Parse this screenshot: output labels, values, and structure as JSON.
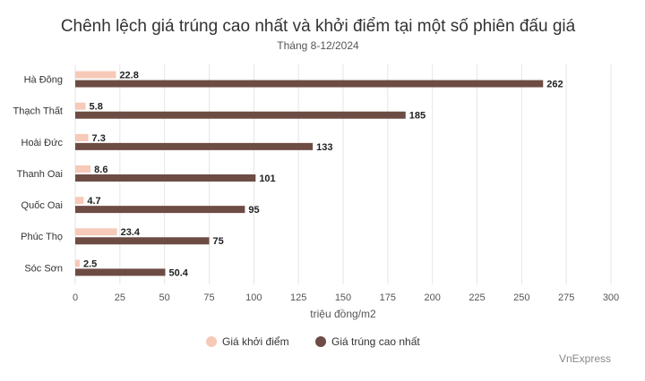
{
  "chart_data": {
    "type": "hbar",
    "title": "Chênh lệch giá trúng cao nhất và khởi điểm tại một số phiên đấu giá",
    "subtitle": "Tháng 8-12/2024",
    "x_label": "triệu đồng/m2",
    "source": "VnExpress",
    "categories": [
      "Hà Đông",
      "Thạch Thất",
      "Hoài Đức",
      "Thanh Oai",
      "Quốc Oai",
      "Phúc Thọ",
      "Sóc Sơn"
    ],
    "series": [
      {
        "name": "Giá khởi điểm",
        "color": "#f6c9b9",
        "values": [
          22.8,
          5.8,
          7.3,
          8.6,
          4.7,
          23.4,
          2.5
        ]
      },
      {
        "name": "Giá trúng cao nhất",
        "color": "#6d4c43",
        "values": [
          262,
          185,
          133,
          101,
          95,
          75,
          50.4
        ]
      }
    ],
    "xlim": [
      0,
      300
    ],
    "xticks": [
      0,
      25,
      50,
      75,
      100,
      125,
      150,
      175,
      200,
      225,
      250,
      275,
      300
    ],
    "grid": true,
    "legend": "bottom"
  }
}
